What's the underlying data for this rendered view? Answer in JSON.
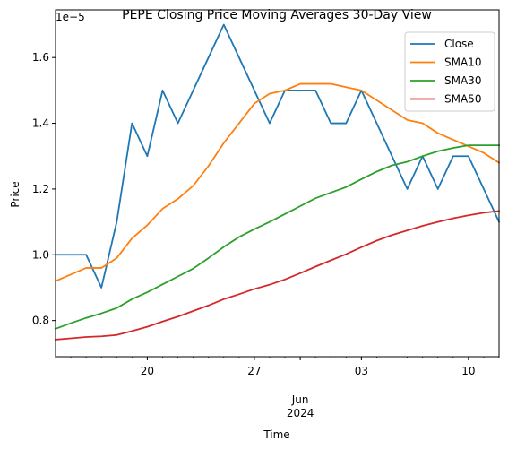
{
  "chart_data": {
    "type": "line",
    "title": "PEPE Closing Price Moving Averages 30-Day View",
    "xlabel": "Time",
    "ylabel": "Price",
    "y_multiplier_label": "1e−5",
    "x_tick_labels": [
      {
        "day": 6,
        "label": "20"
      },
      {
        "day": 13,
        "label": "27"
      },
      {
        "day": 20,
        "label": "03"
      },
      {
        "day": 27,
        "label": "10"
      }
    ],
    "x_sublabel": {
      "day": 16,
      "month": "Jun",
      "year": "2024"
    },
    "x_range": [
      0,
      29
    ],
    "ylim": [
      0.69,
      1.745
    ],
    "y_ticks": [
      {
        "value": 0.8,
        "label": "0.8"
      },
      {
        "value": 1.0,
        "label": "1.0"
      },
      {
        "value": 1.2,
        "label": "1.2"
      },
      {
        "value": 1.4,
        "label": "1.4"
      },
      {
        "value": 1.6,
        "label": "1.6"
      }
    ],
    "x": [
      0,
      1,
      2,
      3,
      4,
      5,
      6,
      7,
      8,
      9,
      10,
      11,
      12,
      13,
      14,
      15,
      16,
      17,
      18,
      19,
      20,
      21,
      22,
      23,
      24,
      25,
      26,
      27,
      28,
      29
    ],
    "series": [
      {
        "name": "Close",
        "color": "#1f77b4",
        "values": [
          1.0,
          1.0,
          1.0,
          0.9,
          1.1,
          1.4,
          1.3,
          1.5,
          1.4,
          1.5,
          1.6,
          1.7,
          1.6,
          1.5,
          1.4,
          1.5,
          1.5,
          1.5,
          1.4,
          1.4,
          1.5,
          1.4,
          1.3,
          1.2,
          1.3,
          1.2,
          1.3,
          1.3,
          1.2,
          1.1
        ]
      },
      {
        "name": "SMA10",
        "color": "#ff7f0e",
        "values": [
          0.92,
          0.94,
          0.96,
          0.96,
          0.99,
          1.05,
          1.09,
          1.14,
          1.17,
          1.21,
          1.27,
          1.34,
          1.4,
          1.46,
          1.49,
          1.5,
          1.52,
          1.52,
          1.52,
          1.51,
          1.5,
          1.47,
          1.44,
          1.41,
          1.4,
          1.37,
          1.35,
          1.33,
          1.31,
          1.28
        ]
      },
      {
        "name": "SMA30",
        "color": "#2ca02c",
        "values": [
          0.775,
          0.792,
          0.808,
          0.822,
          0.838,
          0.865,
          0.886,
          0.91,
          0.934,
          0.958,
          0.99,
          1.024,
          1.054,
          1.078,
          1.1,
          1.124,
          1.148,
          1.172,
          1.189,
          1.206,
          1.23,
          1.253,
          1.272,
          1.283,
          1.3,
          1.315,
          1.325,
          1.333,
          1.333,
          1.333
        ]
      },
      {
        "name": "SMA50",
        "color": "#d62728",
        "values": [
          0.742,
          0.746,
          0.75,
          0.752,
          0.756,
          0.768,
          0.781,
          0.797,
          0.812,
          0.829,
          0.846,
          0.865,
          0.88,
          0.896,
          0.909,
          0.925,
          0.944,
          0.964,
          0.983,
          1.002,
          1.023,
          1.043,
          1.06,
          1.074,
          1.088,
          1.1,
          1.111,
          1.12,
          1.128,
          1.133
        ]
      }
    ],
    "legend_position": "top-right"
  }
}
